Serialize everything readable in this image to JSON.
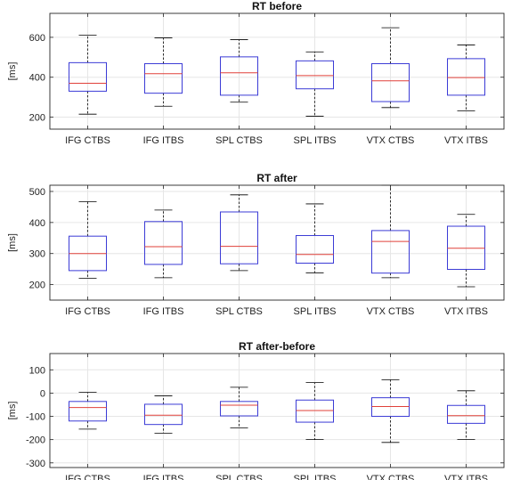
{
  "chart_data": [
    {
      "type": "box",
      "title": "RT before",
      "ylabel": "[ms]",
      "xlabel": "",
      "ylim": [
        140,
        720
      ],
      "yticks": [
        200,
        400,
        600
      ],
      "grid": true,
      "categories": [
        "IFG CTBS",
        "IFG ITBS",
        "SPL CTBS",
        "SPL ITBS",
        "VTX CTBS",
        "VTX ITBS"
      ],
      "boxes": [
        {
          "whisker_low": 215,
          "q1": 330,
          "median": 370,
          "q3": 473,
          "whisker_high": 610
        },
        {
          "whisker_low": 255,
          "q1": 320,
          "median": 418,
          "q3": 468,
          "whisker_high": 597
        },
        {
          "whisker_low": 275,
          "q1": 310,
          "median": 422,
          "q3": 502,
          "whisker_high": 588
        },
        {
          "whisker_low": 205,
          "q1": 342,
          "median": 408,
          "q3": 482,
          "whisker_high": 527
        },
        {
          "whisker_low": 248,
          "q1": 278,
          "median": 382,
          "q3": 468,
          "whisker_high": 648
        },
        {
          "whisker_low": 232,
          "q1": 310,
          "median": 398,
          "q3": 493,
          "whisker_high": 562
        }
      ]
    },
    {
      "type": "box",
      "title": "RT after",
      "ylabel": "[ms]",
      "xlabel": "",
      "ylim": [
        150,
        520
      ],
      "yticks": [
        200,
        300,
        400,
        500
      ],
      "grid": true,
      "categories": [
        "IFG CTBS",
        "IFG ITBS",
        "SPL CTBS",
        "SPL ITBS",
        "VTX CTBS",
        "VTX ITBS"
      ],
      "boxes": [
        {
          "whisker_low": 220,
          "q1": 245,
          "median": 300,
          "q3": 356,
          "whisker_high": 467
        },
        {
          "whisker_low": 222,
          "q1": 265,
          "median": 322,
          "q3": 403,
          "whisker_high": 440
        },
        {
          "whisker_low": 245,
          "q1": 267,
          "median": 323,
          "q3": 434,
          "whisker_high": 489
        },
        {
          "whisker_low": 238,
          "q1": 269,
          "median": 297,
          "q3": 358,
          "whisker_high": 460
        },
        {
          "whisker_low": 222,
          "q1": 237,
          "median": 339,
          "q3": 374,
          "whisker_high": 520
        },
        {
          "whisker_low": 193,
          "q1": 249,
          "median": 317,
          "q3": 388,
          "whisker_high": 426
        }
      ]
    },
    {
      "type": "box",
      "title": "RT after-before",
      "ylabel": "[ms]",
      "xlabel": "",
      "ylim": [
        -320,
        170
      ],
      "yticks": [
        -300,
        -200,
        -100,
        0,
        100
      ],
      "grid": true,
      "categories": [
        "IFG CTBS",
        "IFG ITBS",
        "SPL CTBS",
        "SPL ITBS",
        "VTX CTBS",
        "VTX ITBS"
      ],
      "boxes": [
        {
          "whisker_low": -155,
          "q1": -120,
          "median": -62,
          "q3": -36,
          "whisker_high": 3
        },
        {
          "whisker_low": -172,
          "q1": -135,
          "median": -95,
          "q3": -48,
          "whisker_high": -12
        },
        {
          "whisker_low": -150,
          "q1": -98,
          "median": -52,
          "q3": -36,
          "whisker_high": 25
        },
        {
          "whisker_low": -200,
          "q1": -125,
          "median": -75,
          "q3": -30,
          "whisker_high": 45
        },
        {
          "whisker_low": -212,
          "q1": -100,
          "median": -58,
          "q3": -20,
          "whisker_high": 57
        },
        {
          "whisker_low": -200,
          "q1": -130,
          "median": -97,
          "q3": -53,
          "whisker_high": 10
        }
      ]
    }
  ],
  "colors": {
    "box": "#3b3bd6",
    "median": "#e0413a",
    "whisker": "#000000",
    "grid": "#e6e6e6",
    "axes": "#262626"
  }
}
